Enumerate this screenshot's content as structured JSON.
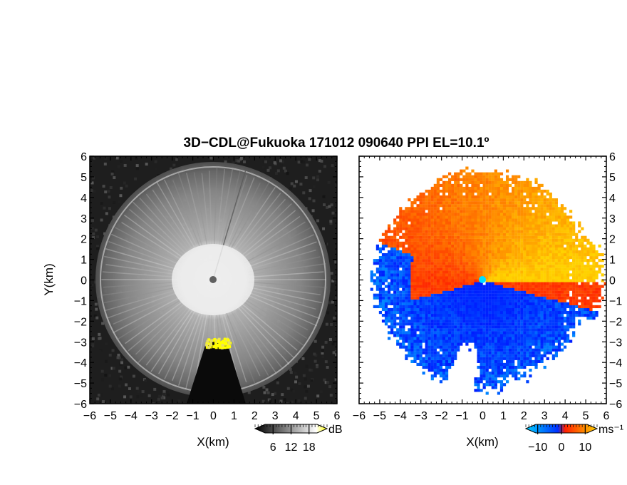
{
  "chart_data": {
    "title": "3D−CDL@Fukuoka 171012 090640 PPI EL=10.1º",
    "panels": [
      {
        "type": "heatmap",
        "field": "reflectivity",
        "xlabel": "X(km)",
        "ylabel": "Y(km)",
        "xlim": [
          -6,
          6
        ],
        "ylim": [
          -6,
          6
        ],
        "colorbar": {
          "unit": "dB",
          "ticks": [
            "6",
            "12",
            "18"
          ],
          "range": [
            0,
            24
          ],
          "colors": [
            "#000000",
            "#ffffff",
            "#ffff00"
          ]
        }
      },
      {
        "type": "heatmap",
        "field": "doppler-velocity",
        "xlabel": "X(km)",
        "ylabel": "",
        "xlim": [
          -6,
          6
        ],
        "ylim": [
          -6,
          6
        ],
        "colorbar": {
          "unit": "ms⁻¹",
          "ticks": [
            "−10",
            "0",
            "10"
          ],
          "range": [
            -15,
            15
          ],
          "colors": [
            "#00c8ff",
            "#0030ff",
            "#ff2000",
            "#ffd000"
          ]
        }
      }
    ],
    "tick_labels": [
      "−6",
      "−5",
      "−4",
      "−3",
      "−2",
      "−1",
      "0",
      "1",
      "2",
      "3",
      "4",
      "5",
      "6"
    ]
  }
}
